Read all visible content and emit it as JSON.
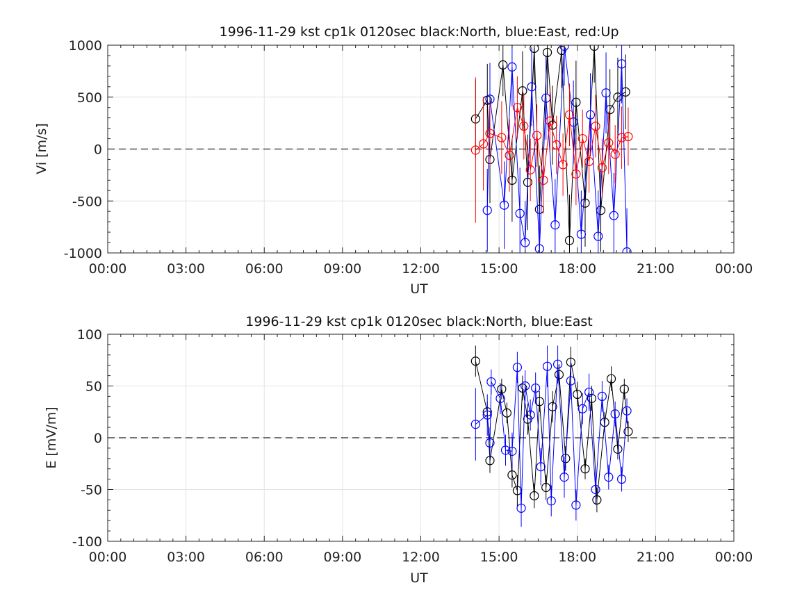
{
  "colors": {
    "north": "#000000",
    "east": "#0000ff",
    "up": "#ff0000",
    "grid": "#e3e3e3"
  },
  "chart_data": [
    {
      "type": "scatter",
      "title": "1996-11-29 kst cp1k 0120sec black:North, blue:East, red:Up",
      "xlabel": "UT",
      "ylabel": "Vi [m/s]",
      "xlim_hours": [
        0,
        24
      ],
      "ylim": [
        -1000,
        1000
      ],
      "xticks": [
        "00:00",
        "03:00",
        "06:00",
        "09:00",
        "12:00",
        "15:00",
        "18:00",
        "21:00",
        "00:00"
      ],
      "yticks": [
        "1000",
        "500",
        "0",
        "-500",
        "-1000"
      ],
      "ytick_values": [
        1000,
        500,
        0,
        -500,
        -1000
      ],
      "grid": true,
      "zero_line": "dashed",
      "series": [
        {
          "name": "North",
          "color": "#000000",
          "x": [
            14.1,
            14.55,
            14.65,
            15.15,
            15.5,
            15.9,
            16.1,
            16.35,
            16.55,
            16.85,
            17.05,
            17.4,
            17.7,
            17.95,
            18.3,
            18.65,
            18.9,
            19.25,
            19.55,
            19.85
          ],
          "y": [
            290,
            470,
            -100,
            810,
            -300,
            560,
            -320,
            970,
            -580,
            930,
            230,
            950,
            -880,
            450,
            -520,
            990,
            -590,
            380,
            500,
            550
          ],
          "err": [
            380,
            350,
            420,
            300,
            400,
            380,
            460,
            350,
            420,
            400,
            380,
            360,
            440,
            400,
            420,
            350,
            400,
            390,
            380,
            360
          ]
        },
        {
          "name": "East",
          "color": "#0000ff",
          "x": [
            14.55,
            14.65,
            15.2,
            15.5,
            15.8,
            16.0,
            16.25,
            16.55,
            16.8,
            17.15,
            17.5,
            17.85,
            18.15,
            18.5,
            18.8,
            19.1,
            19.4,
            19.7,
            19.9
          ],
          "y": [
            -590,
            480,
            -540,
            790,
            -620,
            -900,
            600,
            -960,
            490,
            -730,
            990,
            260,
            -820,
            330,
            -840,
            540,
            -640,
            820,
            -990
          ],
          "err": [
            400,
            350,
            420,
            380,
            440,
            400,
            380,
            420,
            400,
            440,
            380,
            400,
            420,
            400,
            440,
            390,
            410,
            380,
            420
          ]
        },
        {
          "name": "Up",
          "color": "#ff0000",
          "x": [
            14.1,
            14.4,
            14.65,
            15.1,
            15.4,
            15.7,
            15.95,
            16.2,
            16.45,
            16.7,
            16.95,
            17.2,
            17.45,
            17.7,
            17.95,
            18.2,
            18.45,
            18.7,
            18.95,
            19.2,
            19.45,
            19.7,
            19.95
          ],
          "y": [
            -10,
            50,
            150,
            110,
            -60,
            400,
            220,
            -200,
            130,
            -300,
            270,
            40,
            -150,
            330,
            -240,
            100,
            -120,
            220,
            -180,
            60,
            -50,
            110,
            120
          ],
          "err": [
            700,
            450,
            300,
            350,
            350,
            300,
            320,
            300,
            300,
            320,
            300,
            280,
            300,
            300,
            300,
            280,
            300,
            300,
            280,
            300,
            280,
            300,
            280
          ]
        }
      ]
    },
    {
      "type": "scatter",
      "title": "1996-11-29 kst cp1k 0120sec black:North, blue:East",
      "xlabel": "UT",
      "ylabel": "E [mV/m]",
      "xlim_hours": [
        0,
        24
      ],
      "ylim": [
        -100,
        100
      ],
      "xticks": [
        "00:00",
        "03:00",
        "06:00",
        "09:00",
        "12:00",
        "15:00",
        "18:00",
        "21:00",
        "00:00"
      ],
      "yticks": [
        "100",
        "50",
        "0",
        "-50",
        "-100"
      ],
      "ytick_values": [
        100,
        50,
        0,
        -50,
        -100
      ],
      "grid": true,
      "zero_line": "dashed",
      "series": [
        {
          "name": "North",
          "color": "#000000",
          "x": [
            14.1,
            14.55,
            14.65,
            15.1,
            15.3,
            15.5,
            15.7,
            15.9,
            16.1,
            16.35,
            16.55,
            16.8,
            17.05,
            17.3,
            17.55,
            17.75,
            18.0,
            18.3,
            18.55,
            18.75,
            19.05,
            19.3,
            19.55,
            19.8,
            19.95
          ],
          "y": [
            74,
            25,
            -22,
            47,
            24,
            -36,
            -51,
            48,
            18,
            -56,
            35,
            -48,
            30,
            61,
            -20,
            73,
            42,
            -30,
            38,
            -60,
            15,
            57,
            -11,
            47,
            6
          ],
          "err": [
            15,
            10,
            12,
            10,
            10,
            12,
            15,
            12,
            15,
            12,
            10,
            12,
            15,
            10,
            12,
            15,
            12,
            10,
            12,
            12,
            10,
            12,
            10,
            10,
            10
          ]
        },
        {
          "name": "East",
          "color": "#0000ff",
          "x": [
            14.1,
            14.55,
            14.65,
            14.7,
            15.05,
            15.25,
            15.5,
            15.7,
            15.85,
            16.0,
            16.2,
            16.4,
            16.6,
            16.85,
            17.0,
            17.25,
            17.5,
            17.75,
            17.95,
            18.2,
            18.45,
            18.7,
            18.95,
            19.2,
            19.45,
            19.7,
            19.9
          ],
          "y": [
            13,
            22,
            -5,
            54,
            38,
            -12,
            -13,
            68,
            -68,
            50,
            22,
            48,
            -28,
            69,
            -61,
            71,
            -38,
            55,
            -65,
            28,
            44,
            -50,
            40,
            -38,
            23,
            -40,
            26
          ],
          "err": [
            35,
            20,
            15,
            12,
            15,
            15,
            18,
            15,
            18,
            15,
            15,
            15,
            18,
            20,
            15,
            18,
            20,
            18,
            15,
            15,
            18,
            15,
            15,
            12,
            12,
            12,
            12
          ]
        }
      ]
    }
  ]
}
